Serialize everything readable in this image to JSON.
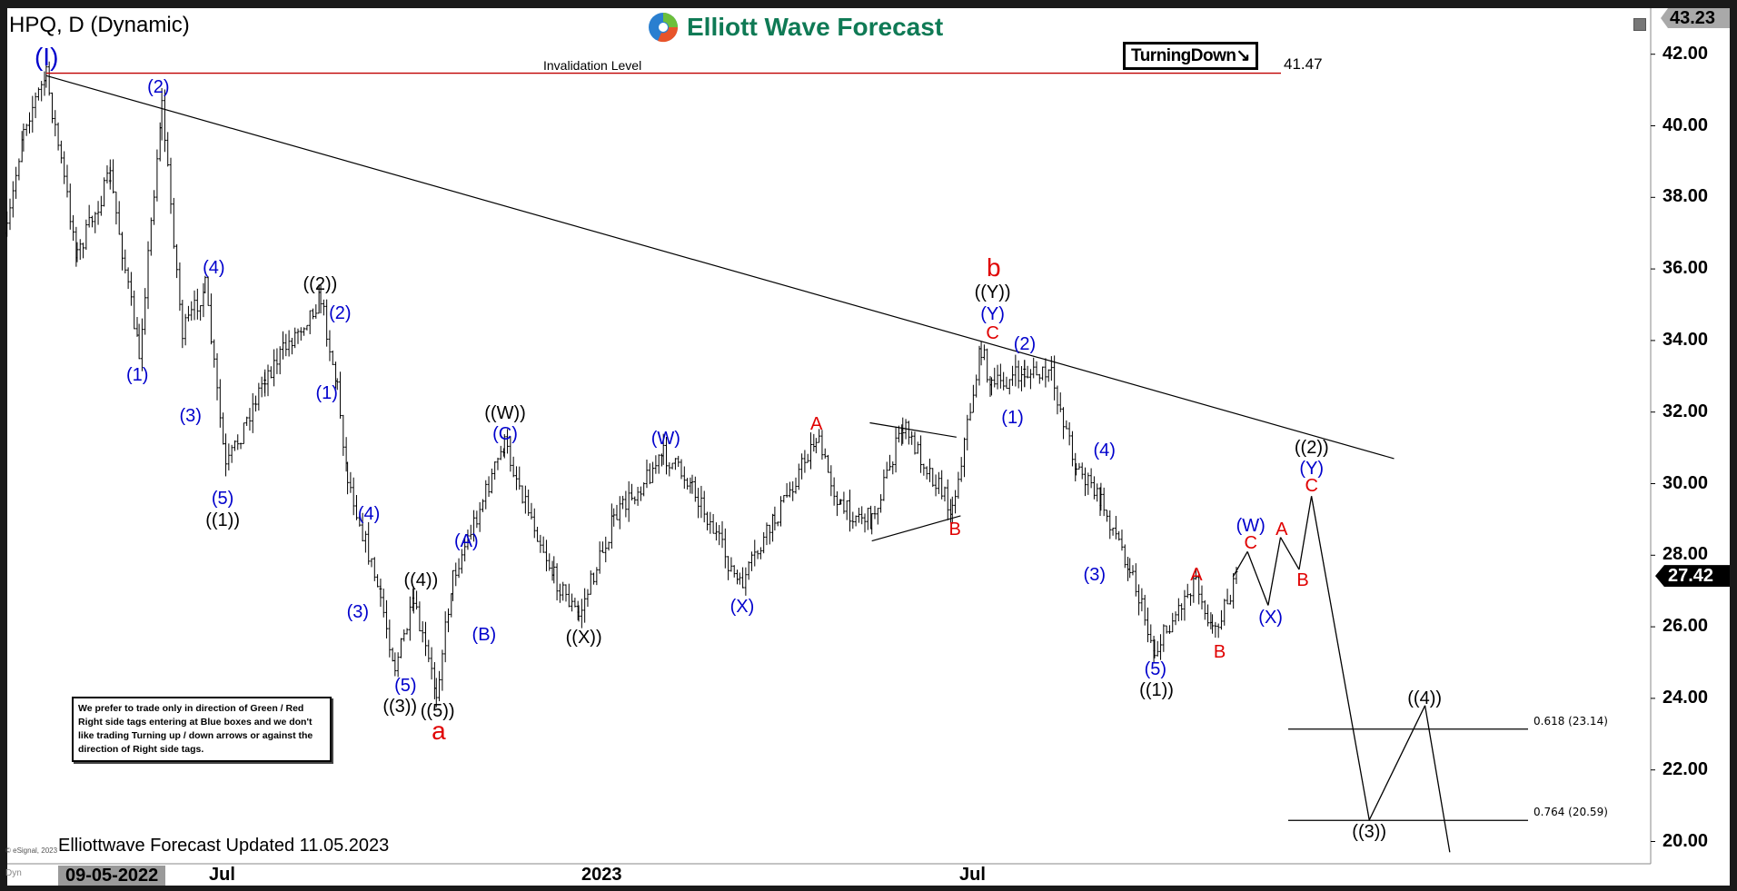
{
  "header": {
    "symbol_title": "HPQ, D (Dynamic)",
    "logo_text": "Elliott Wave Forecast",
    "turning_label": "TurningDown",
    "turning_arrow": "↘"
  },
  "note": "We prefer to trade only in direction of Green / Red Right side tags entering at Blue boxes and we don't like trading Turning up / down arrows or against the direction of Right side tags.",
  "footer": {
    "updated": "Elliottwave Forecast Updated 11.05.2023",
    "copyright": "© eSignal, 2023",
    "dyn": "Dyn",
    "cursor_date": "09-05-2022"
  },
  "colors": {
    "blue": "#0000cc",
    "red": "#e00000",
    "black": "#000000",
    "invalidation": "#c00000",
    "logo": "#0f7a55"
  },
  "chart_data": {
    "type": "ohlc-with-annotations",
    "y_axis": {
      "min": 19.6,
      "max": 43.3,
      "ticks": [
        "42.00",
        "40.00",
        "38.00",
        "36.00",
        "34.00",
        "32.00",
        "30.00",
        "28.00",
        "26.00",
        "24.00",
        "22.00",
        "20.00"
      ],
      "position": "right"
    },
    "x_axis": {
      "ticks": [
        "Jul",
        "2023",
        "Jul"
      ]
    },
    "top_price_tag": "43.23",
    "last_price_tag": "27.42",
    "last_price": 27.42,
    "invalidation": {
      "label": "Invalidation Level",
      "value": 41.47,
      "value_label": "41.47"
    },
    "fib_levels": [
      {
        "label": "0.618 (23.14)",
        "value": 23.14
      },
      {
        "label": "0.764 (20.59)",
        "value": 20.59
      }
    ],
    "price_path": [
      [
        "2022-03-19",
        37.0
      ],
      [
        "2022-03-27",
        40.0
      ],
      [
        "2022-04-07",
        41.4
      ],
      [
        "2022-04-22",
        36.4
      ],
      [
        "2022-05-08",
        38.6
      ],
      [
        "2022-05-22",
        33.6
      ],
      [
        "2022-06-02",
        40.6
      ],
      [
        "2022-06-12",
        34.2
      ],
      [
        "2022-06-23",
        35.5
      ],
      [
        "2022-07-03",
        30.4
      ],
      [
        "2022-07-22",
        33.0
      ],
      [
        "2022-08-18",
        35.2
      ],
      [
        "2022-08-26",
        32.7
      ],
      [
        "2022-08-31",
        30.2
      ],
      [
        "2022-09-16",
        26.8
      ],
      [
        "2022-09-23",
        24.9
      ],
      [
        "2022-10-02",
        26.6
      ],
      [
        "2022-10-13",
        24.2
      ],
      [
        "2022-10-21",
        27.4
      ],
      [
        "2022-11-15",
        31.1
      ],
      [
        "2022-12-09",
        27.4
      ],
      [
        "2022-12-21",
        26.3
      ],
      [
        "2023-01-07",
        29.0
      ],
      [
        "2023-01-31",
        30.8
      ],
      [
        "2023-02-14",
        30.0
      ],
      [
        "2023-03-09",
        27.1
      ],
      [
        "2023-03-26",
        29.0
      ],
      [
        "2023-04-15",
        31.3
      ],
      [
        "2023-04-27",
        29.3
      ],
      [
        "2023-05-12",
        29.0
      ],
      [
        "2023-05-27",
        31.6
      ],
      [
        "2023-06-20",
        29.3
      ],
      [
        "2023-07-04",
        33.8
      ],
      [
        "2023-07-09",
        32.7
      ],
      [
        "2023-07-25",
        33.1
      ],
      [
        "2023-08-07",
        33.0
      ],
      [
        "2023-08-19",
        30.5
      ],
      [
        "2023-08-31",
        29.5
      ],
      [
        "2023-09-14",
        27.7
      ],
      [
        "2023-09-26",
        25.3
      ],
      [
        "2023-10-16",
        27.4
      ],
      [
        "2023-10-24",
        25.9
      ],
      [
        "2023-11-06",
        27.42
      ]
    ],
    "projection_path": [
      [
        "2023-11-03",
        27.4
      ],
      [
        "2023-11-10",
        28.1
      ],
      [
        "2023-11-20",
        26.6
      ],
      [
        "2023-11-26",
        28.5
      ],
      [
        "2023-12-05",
        27.6
      ],
      [
        "2023-12-11",
        29.65
      ],
      [
        "2024-01-08",
        20.6
      ],
      [
        "2024-02-04",
        23.8
      ],
      [
        "2024-02-16",
        19.7
      ]
    ],
    "trendline": [
      [
        "2022-04-07",
        41.4
      ],
      [
        "2024-01-20",
        30.7
      ]
    ],
    "triangle": [
      [
        [
          "2023-05-11",
          31.7
        ],
        [
          "2023-06-22",
          31.3
        ]
      ],
      [
        [
          "2023-05-12",
          28.4
        ],
        [
          "2023-06-24",
          29.1
        ]
      ]
    ],
    "wave_labels": [
      {
        "text": "(I)",
        "color": "blue"
      },
      {
        "text": "(2)",
        "color": "blue"
      },
      {
        "text": "(4)",
        "color": "blue"
      },
      {
        "text": "(1)",
        "color": "blue"
      },
      {
        "text": "(3)",
        "color": "blue"
      },
      {
        "text": "(5)",
        "color": "blue"
      },
      {
        "text": "((1))",
        "color": "black"
      },
      {
        "text": "((2))",
        "color": "black"
      },
      {
        "text": "(2)",
        "color": "blue"
      },
      {
        "text": "(1)",
        "color": "blue"
      },
      {
        "text": "(4)",
        "color": "blue"
      },
      {
        "text": "(3)",
        "color": "blue"
      },
      {
        "text": "((4))",
        "color": "black"
      },
      {
        "text": "(5)",
        "color": "blue"
      },
      {
        "text": "((3))",
        "color": "black"
      },
      {
        "text": "((5))",
        "color": "black"
      },
      {
        "text": "a",
        "color": "red"
      },
      {
        "text": "((W))",
        "color": "black"
      },
      {
        "text": "(C)",
        "color": "blue"
      },
      {
        "text": "(A)",
        "color": "blue"
      },
      {
        "text": "(B)",
        "color": "blue"
      },
      {
        "text": "((X))",
        "color": "black"
      },
      {
        "text": "(W)",
        "color": "blue"
      },
      {
        "text": "(X)",
        "color": "blue"
      },
      {
        "text": "A",
        "color": "red"
      },
      {
        "text": "B",
        "color": "red"
      },
      {
        "text": "b",
        "color": "red"
      },
      {
        "text": "((Y))",
        "color": "black"
      },
      {
        "text": "(Y)",
        "color": "blue"
      },
      {
        "text": "C",
        "color": "red"
      },
      {
        "text": "(2)",
        "color": "blue"
      },
      {
        "text": "(1)",
        "color": "blue"
      },
      {
        "text": "(4)",
        "color": "blue"
      },
      {
        "text": "(3)",
        "color": "blue"
      },
      {
        "text": "(5)",
        "color": "blue"
      },
      {
        "text": "((1))",
        "color": "black"
      },
      {
        "text": "A",
        "color": "red"
      },
      {
        "text": "B",
        "color": "red"
      },
      {
        "text": "(W)",
        "color": "blue"
      },
      {
        "text": "C",
        "color": "red"
      },
      {
        "text": "A",
        "color": "red"
      },
      {
        "text": "B",
        "color": "red"
      },
      {
        "text": "(X)",
        "color": "blue"
      },
      {
        "text": "((2))",
        "color": "black"
      },
      {
        "text": "(Y)",
        "color": "blue"
      },
      {
        "text": "C",
        "color": "red"
      },
      {
        "text": "((4))",
        "color": "black"
      },
      {
        "text": "((3))",
        "color": "black"
      }
    ]
  }
}
